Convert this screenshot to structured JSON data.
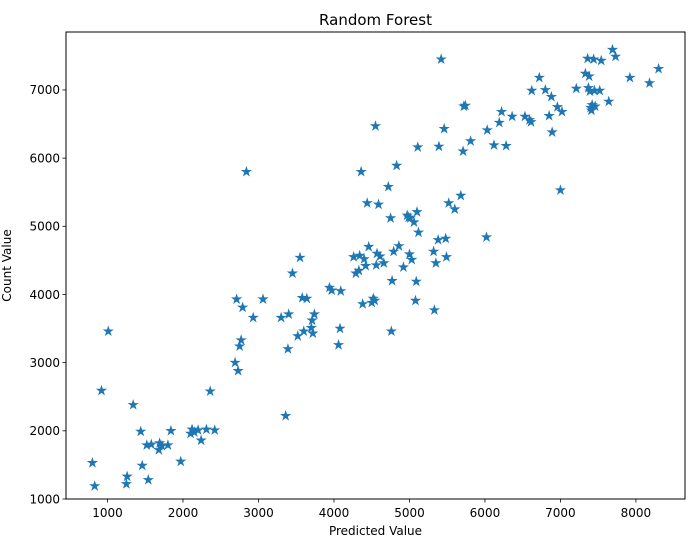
{
  "chart_data": {
    "type": "scatter",
    "title": "Random Forest",
    "xlabel": "Predicted Value",
    "ylabel": "Count Value",
    "xlim": [
      450,
      8650
    ],
    "ylim": [
      1000,
      7850
    ],
    "xticks": [
      1000,
      2000,
      3000,
      4000,
      5000,
      6000,
      7000,
      8000
    ],
    "yticks": [
      1000,
      2000,
      3000,
      4000,
      5000,
      6000,
      7000
    ],
    "marker": "star",
    "grid": false,
    "legend": "none",
    "color": "#1f77b4",
    "points": [
      [
        800,
        1530
      ],
      [
        830,
        1190
      ],
      [
        920,
        2590
      ],
      [
        1010,
        3460
      ],
      [
        1250,
        1220
      ],
      [
        1260,
        1330
      ],
      [
        1340,
        2380
      ],
      [
        1440,
        1990
      ],
      [
        1460,
        1490
      ],
      [
        1520,
        1790
      ],
      [
        1540,
        1280
      ],
      [
        1580,
        1800
      ],
      [
        1680,
        1720
      ],
      [
        1690,
        1820
      ],
      [
        1720,
        1780
      ],
      [
        1800,
        1790
      ],
      [
        1840,
        2000
      ],
      [
        1970,
        1550
      ],
      [
        2100,
        1960
      ],
      [
        2120,
        2020
      ],
      [
        2150,
        1980
      ],
      [
        2200,
        2010
      ],
      [
        2240,
        1860
      ],
      [
        2310,
        2020
      ],
      [
        2360,
        2580
      ],
      [
        2420,
        2010
      ],
      [
        2690,
        3000
      ],
      [
        2710,
        3930
      ],
      [
        2730,
        2880
      ],
      [
        2750,
        3240
      ],
      [
        2770,
        3330
      ],
      [
        2790,
        3810
      ],
      [
        2840,
        5800
      ],
      [
        2930,
        3660
      ],
      [
        3060,
        3930
      ],
      [
        3300,
        3660
      ],
      [
        3360,
        2220
      ],
      [
        3390,
        3200
      ],
      [
        3400,
        3710
      ],
      [
        3450,
        4310
      ],
      [
        3520,
        3390
      ],
      [
        3550,
        4540
      ],
      [
        3580,
        3950
      ],
      [
        3600,
        3460
      ],
      [
        3640,
        3940
      ],
      [
        3700,
        3510
      ],
      [
        3710,
        3620
      ],
      [
        3720,
        3430
      ],
      [
        3740,
        3710
      ],
      [
        3940,
        4100
      ],
      [
        3970,
        4060
      ],
      [
        4060,
        3260
      ],
      [
        4080,
        3500
      ],
      [
        4090,
        4050
      ],
      [
        4260,
        4550
      ],
      [
        4290,
        4310
      ],
      [
        4330,
        4350
      ],
      [
        4340,
        4570
      ],
      [
        4360,
        5800
      ],
      [
        4380,
        3860
      ],
      [
        4400,
        4520
      ],
      [
        4420,
        4420
      ],
      [
        4440,
        5340
      ],
      [
        4460,
        4700
      ],
      [
        4500,
        3880
      ],
      [
        4520,
        3940
      ],
      [
        4540,
        3910
      ],
      [
        4550,
        6470
      ],
      [
        4560,
        4430
      ],
      [
        4570,
        4600
      ],
      [
        4590,
        5320
      ],
      [
        4610,
        4560
      ],
      [
        4660,
        4460
      ],
      [
        4720,
        5580
      ],
      [
        4750,
        5120
      ],
      [
        4760,
        3460
      ],
      [
        4770,
        4200
      ],
      [
        4790,
        4630
      ],
      [
        4830,
        5890
      ],
      [
        4860,
        4710
      ],
      [
        4920,
        4400
      ],
      [
        4970,
        5160
      ],
      [
        4990,
        5130
      ],
      [
        5000,
        4590
      ],
      [
        5010,
        5120
      ],
      [
        5030,
        4510
      ],
      [
        5060,
        5060
      ],
      [
        5080,
        3910
      ],
      [
        5090,
        4190
      ],
      [
        5100,
        5210
      ],
      [
        5110,
        6160
      ],
      [
        5120,
        4910
      ],
      [
        5320,
        4630
      ],
      [
        5330,
        3770
      ],
      [
        5350,
        4460
      ],
      [
        5380,
        4800
      ],
      [
        5390,
        6170
      ],
      [
        5420,
        7450
      ],
      [
        5460,
        6430
      ],
      [
        5480,
        4820
      ],
      [
        5490,
        4550
      ],
      [
        5520,
        5340
      ],
      [
        5600,
        5250
      ],
      [
        5680,
        5450
      ],
      [
        5710,
        6100
      ],
      [
        5720,
        6760
      ],
      [
        5740,
        6770
      ],
      [
        5810,
        6250
      ],
      [
        6020,
        4840
      ],
      [
        6030,
        6410
      ],
      [
        6120,
        6190
      ],
      [
        6190,
        6520
      ],
      [
        6220,
        6680
      ],
      [
        6280,
        6180
      ],
      [
        6360,
        6610
      ],
      [
        6530,
        6610
      ],
      [
        6590,
        6560
      ],
      [
        6610,
        6530
      ],
      [
        6620,
        6990
      ],
      [
        6720,
        7180
      ],
      [
        6800,
        7000
      ],
      [
        6850,
        6620
      ],
      [
        6880,
        6900
      ],
      [
        6890,
        6380
      ],
      [
        6960,
        6750
      ],
      [
        7000,
        5530
      ],
      [
        7020,
        6680
      ],
      [
        7210,
        7020
      ],
      [
        7330,
        7240
      ],
      [
        7360,
        7460
      ],
      [
        7370,
        7030
      ],
      [
        7380,
        7200
      ],
      [
        7390,
        6980
      ],
      [
        7400,
        6740
      ],
      [
        7410,
        6700
      ],
      [
        7420,
        6780
      ],
      [
        7440,
        7450
      ],
      [
        7450,
        6990
      ],
      [
        7460,
        6760
      ],
      [
        7520,
        6990
      ],
      [
        7540,
        7430
      ],
      [
        7640,
        6830
      ],
      [
        7690,
        7590
      ],
      [
        7730,
        7490
      ],
      [
        7920,
        7180
      ],
      [
        8180,
        7100
      ],
      [
        8300,
        7310
      ]
    ]
  }
}
